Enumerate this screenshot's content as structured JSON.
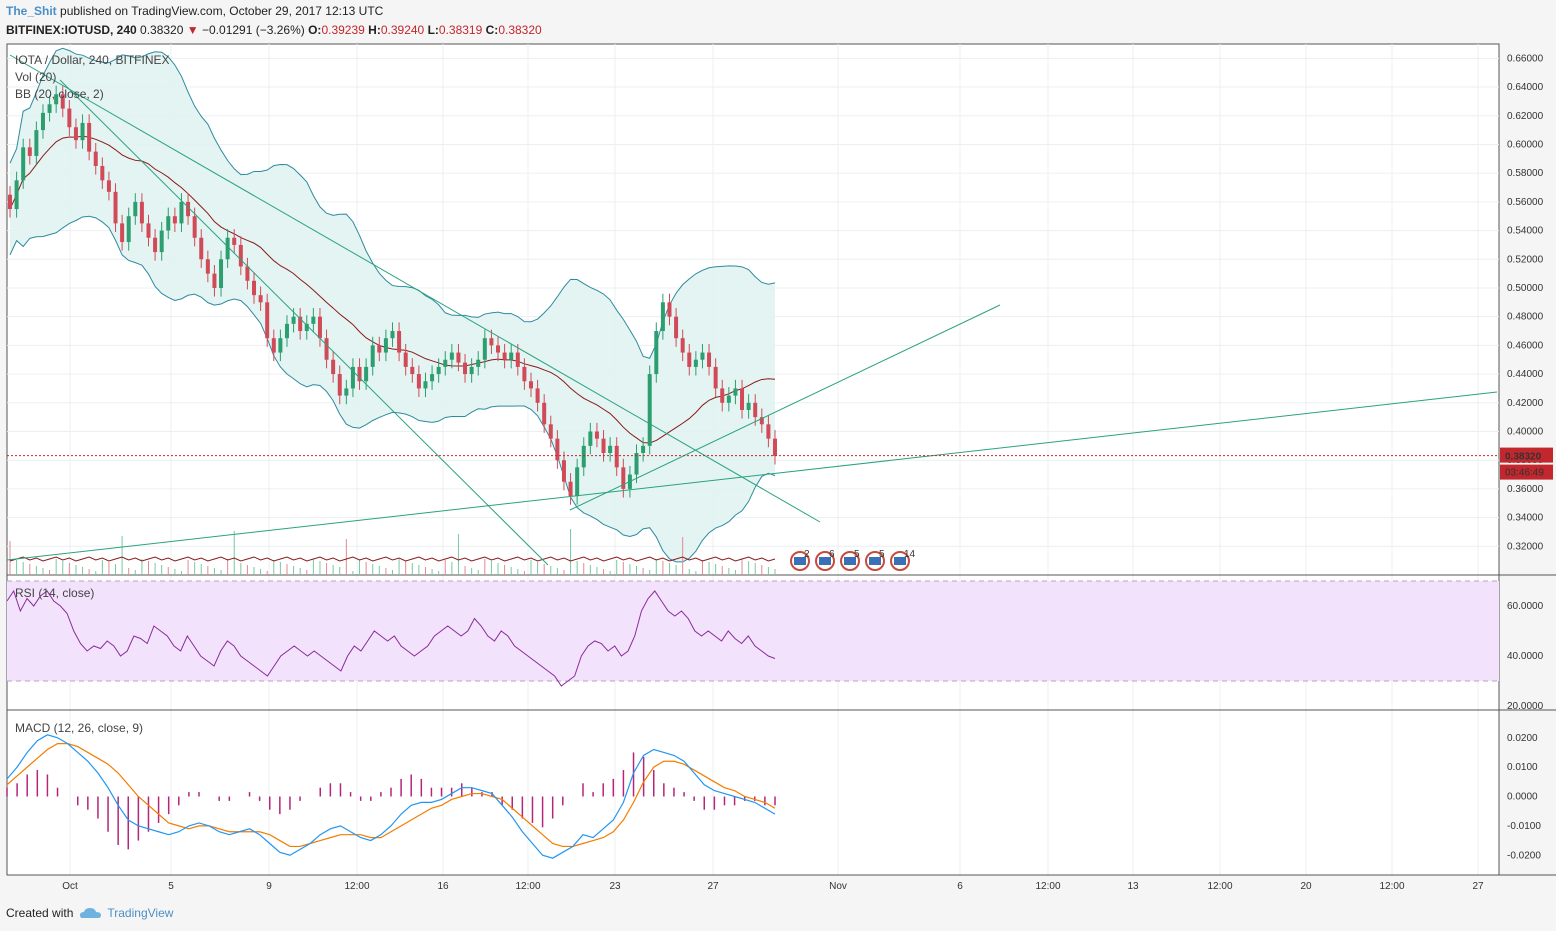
{
  "header": {
    "user": "The_Shit",
    "published": "published on TradingView.com, October 29, 2017 12:13 UTC"
  },
  "symbol_line": {
    "symbol": "BITFINEX:IOTUSD, 240",
    "last": "0.38320",
    "change": "−0.01291 (−3.26%)",
    "open_label": "O:",
    "open": "0.39239",
    "high_label": "H:",
    "high": "0.39240",
    "low_label": "L:",
    "low": "0.38319",
    "close_label": "C:",
    "close": "0.38320"
  },
  "footer": {
    "created": "Created with",
    "brand": "TradingView"
  },
  "colors": {
    "up": "#2c9e6f",
    "down": "#d14a58",
    "bb_band": "#2e8aa0",
    "bb_fill": "#e0f3f1",
    "bb_basis": "#8b1a1a",
    "trend": "#2aa27e",
    "rsi": "#8a2c9a",
    "rsi_fill": "#f3e2fb",
    "macd": "#2196f3",
    "signal": "#f57c00",
    "hist": "#b5257a",
    "price_line": "#c1272d"
  },
  "chart_data": [
    {
      "type": "candlestick",
      "title": "IOTA / Dollar, 240, BITFINEX",
      "legend": [
        "Vol (20)",
        "BB (20, close, 2)"
      ],
      "ylim": [
        0.3,
        0.67
      ],
      "yticks": [
        "0.32000",
        "0.34000",
        "0.36000",
        "0.38000",
        "0.40000",
        "0.42000",
        "0.44000",
        "0.46000",
        "0.48000",
        "0.50000",
        "0.52000",
        "0.54000",
        "0.56000",
        "0.58000",
        "0.60000",
        "0.62000",
        "0.64000",
        "0.66000"
      ],
      "xticks": [
        "Oct",
        "5",
        "9",
        "12:00",
        "16",
        "12:00",
        "23",
        "27",
        "Nov",
        "6",
        "12:00",
        "13",
        "12:00",
        "20",
        "12:00",
        "27"
      ],
      "last_price": "0.38320",
      "countdown": "03:46:49",
      "event_badges": [
        "2",
        "6",
        "5",
        "5",
        "14"
      ],
      "closes": [
        0.555,
        0.575,
        0.598,
        0.592,
        0.61,
        0.622,
        0.628,
        0.635,
        0.625,
        0.612,
        0.603,
        0.615,
        0.595,
        0.585,
        0.575,
        0.567,
        0.545,
        0.532,
        0.55,
        0.56,
        0.545,
        0.535,
        0.525,
        0.54,
        0.55,
        0.545,
        0.56,
        0.55,
        0.535,
        0.52,
        0.51,
        0.5,
        0.52,
        0.535,
        0.53,
        0.515,
        0.505,
        0.495,
        0.49,
        0.465,
        0.455,
        0.465,
        0.475,
        0.48,
        0.47,
        0.475,
        0.48,
        0.465,
        0.45,
        0.44,
        0.425,
        0.43,
        0.445,
        0.435,
        0.445,
        0.46,
        0.455,
        0.465,
        0.47,
        0.455,
        0.445,
        0.44,
        0.43,
        0.435,
        0.44,
        0.445,
        0.45,
        0.455,
        0.448,
        0.44,
        0.445,
        0.45,
        0.465,
        0.46,
        0.455,
        0.45,
        0.455,
        0.445,
        0.435,
        0.43,
        0.42,
        0.405,
        0.395,
        0.38,
        0.365,
        0.355,
        0.375,
        0.39,
        0.4,
        0.395,
        0.385,
        0.39,
        0.375,
        0.36,
        0.37,
        0.385,
        0.39,
        0.44,
        0.47,
        0.49,
        0.48,
        0.465,
        0.455,
        0.445,
        0.45,
        0.455,
        0.445,
        0.43,
        0.42,
        0.425,
        0.43,
        0.415,
        0.42,
        0.41,
        0.405,
        0.395,
        0.383
      ],
      "rsi": {
        "label": "RSI (14, close)",
        "ylim": [
          20,
          70
        ],
        "yticks": [
          "20.0000",
          "40.0000",
          "60.0000"
        ],
        "bands": [
          30,
          70
        ],
        "values": [
          62,
          66,
          58,
          63,
          60,
          64,
          66,
          62,
          60,
          57,
          50,
          45,
          42,
          44,
          43,
          46,
          44,
          40,
          42,
          48,
          47,
          45,
          52,
          50,
          48,
          44,
          42,
          48,
          44,
          40,
          38,
          36,
          42,
          46,
          44,
          40,
          38,
          36,
          34,
          32,
          36,
          40,
          42,
          44,
          42,
          40,
          42,
          40,
          38,
          36,
          34,
          40,
          44,
          42,
          46,
          50,
          48,
          46,
          48,
          44,
          42,
          40,
          42,
          44,
          48,
          50,
          52,
          50,
          48,
          50,
          55,
          52,
          48,
          46,
          50,
          48,
          44,
          42,
          40,
          38,
          36,
          34,
          32,
          28,
          30,
          32,
          40,
          44,
          46,
          45,
          42,
          44,
          40,
          42,
          48,
          58,
          63,
          66,
          62,
          58,
          56,
          58,
          55,
          50,
          48,
          50,
          48,
          46,
          50,
          47,
          45,
          48,
          44,
          42,
          40,
          39
        ],
        "fill": "purple band 30-70"
      },
      "macd": {
        "label": "MACD (12, 26, close, 9)",
        "ylim": [
          -0.024,
          0.024
        ],
        "yticks": [
          "0.0200",
          "0.0100",
          "0.0000",
          "-0.0100",
          "-0.0200"
        ],
        "macd": [
          0.006,
          0.01,
          0.015,
          0.019,
          0.021,
          0.02,
          0.018,
          0.015,
          0.012,
          0.008,
          0.003,
          -0.003,
          -0.008,
          -0.01,
          -0.011,
          -0.012,
          -0.013,
          -0.012,
          -0.01,
          -0.009,
          -0.01,
          -0.012,
          -0.013,
          -0.012,
          -0.011,
          -0.013,
          -0.016,
          -0.019,
          -0.02,
          -0.018,
          -0.016,
          -0.013,
          -0.011,
          -0.01,
          -0.012,
          -0.014,
          -0.015,
          -0.013,
          -0.01,
          -0.006,
          -0.003,
          -0.002,
          -0.002,
          -0.001,
          0.001,
          0.003,
          0.003,
          0.002,
          0.001,
          -0.003,
          -0.007,
          -0.012,
          -0.016,
          -0.02,
          -0.021,
          -0.019,
          -0.017,
          -0.013,
          -0.014,
          -0.011,
          -0.008,
          -0.002,
          0.008,
          0.014,
          0.016,
          0.015,
          0.014,
          0.012,
          0.008,
          0.004,
          0.002,
          0.001,
          0.0,
          -0.001,
          -0.002,
          -0.004,
          -0.006
        ],
        "signal": [
          0.004,
          0.007,
          0.01,
          0.013,
          0.016,
          0.018,
          0.018,
          0.017,
          0.015,
          0.013,
          0.011,
          0.008,
          0.004,
          0.0,
          -0.003,
          -0.006,
          -0.009,
          -0.01,
          -0.011,
          -0.01,
          -0.01,
          -0.011,
          -0.012,
          -0.012,
          -0.012,
          -0.012,
          -0.013,
          -0.015,
          -0.017,
          -0.017,
          -0.016,
          -0.015,
          -0.014,
          -0.013,
          -0.013,
          -0.013,
          -0.014,
          -0.014,
          -0.012,
          -0.01,
          -0.008,
          -0.006,
          -0.004,
          -0.003,
          -0.001,
          0.0,
          0.001,
          0.001,
          0.0,
          -0.001,
          -0.004,
          -0.007,
          -0.01,
          -0.013,
          -0.016,
          -0.017,
          -0.017,
          -0.016,
          -0.015,
          -0.014,
          -0.012,
          -0.008,
          -0.002,
          0.005,
          0.01,
          0.012,
          0.012,
          0.011,
          0.009,
          0.007,
          0.005,
          0.003,
          0.002,
          0.0,
          -0.001,
          -0.002,
          -0.004
        ]
      }
    }
  ]
}
